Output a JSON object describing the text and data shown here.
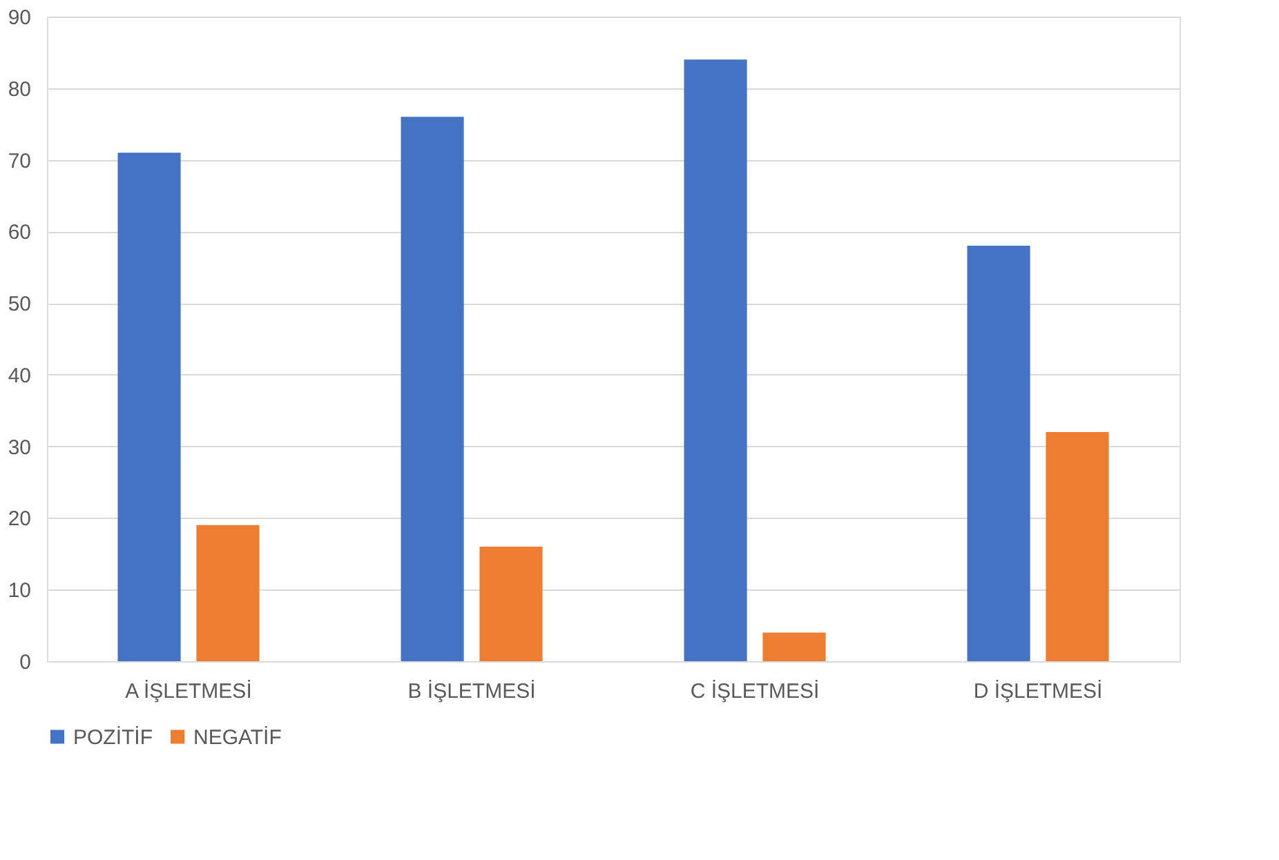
{
  "chart_data": {
    "type": "bar",
    "categories": [
      "A İŞLETMESİ",
      "B İŞLETMESİ",
      "C İŞLETMESİ",
      "D İŞLETMESİ"
    ],
    "series": [
      {
        "name": "POZİTİF",
        "color": "#4472c4",
        "values": [
          71,
          76,
          84,
          58
        ]
      },
      {
        "name": "NEGATİF",
        "color": "#ed7d31",
        "values": [
          19,
          16,
          4,
          32
        ]
      }
    ],
    "ylim": [
      0,
      90
    ],
    "yticks": [
      0,
      10,
      20,
      30,
      40,
      50,
      60,
      70,
      80,
      90
    ],
    "grid": "y",
    "legend": "bottom"
  }
}
